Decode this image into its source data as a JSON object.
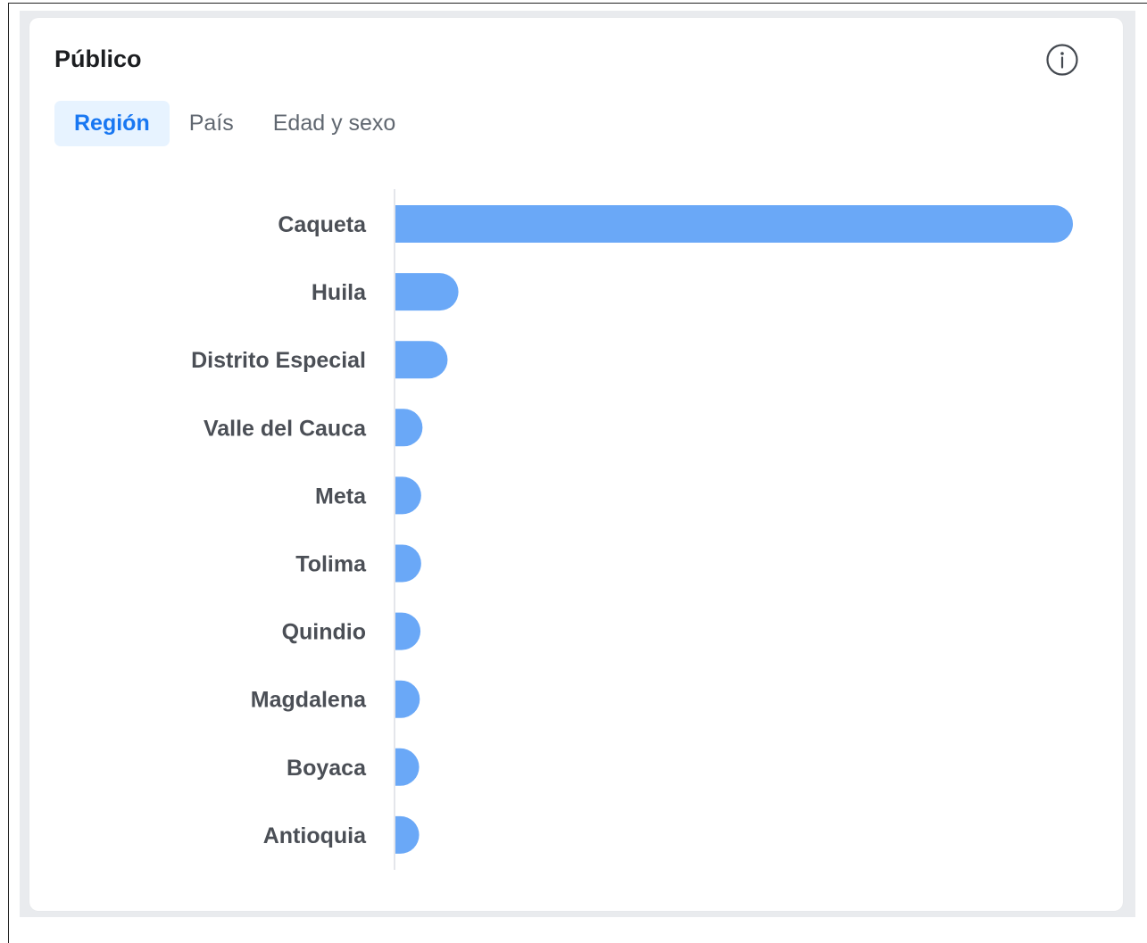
{
  "card": {
    "title": "Público",
    "info_icon": "info-circle-icon"
  },
  "tabs": [
    {
      "label": "Región",
      "active": true
    },
    {
      "label": "País",
      "active": false
    },
    {
      "label": "Edad y sexo",
      "active": false
    }
  ],
  "colors": {
    "bar": "#6aa8f7",
    "tab_active_bg": "#e7f3ff",
    "tab_active_text": "#1877f2",
    "axis": "#e4e6eb"
  },
  "chart_data": {
    "type": "bar",
    "orientation": "horizontal",
    "categories": [
      "Caqueta",
      "Huila",
      "Distrito Especial",
      "Valle del Cauca",
      "Meta",
      "Tolima",
      "Quindio",
      "Magdalena",
      "Boyaca",
      "Antioquia"
    ],
    "values": [
      100,
      9.3,
      7.7,
      4.0,
      3.8,
      3.8,
      3.7,
      3.6,
      3.5,
      3.5
    ],
    "title": "",
    "xlabel": "",
    "ylabel": "",
    "xlim": [
      0,
      100
    ],
    "grid": false,
    "legend": "none"
  }
}
